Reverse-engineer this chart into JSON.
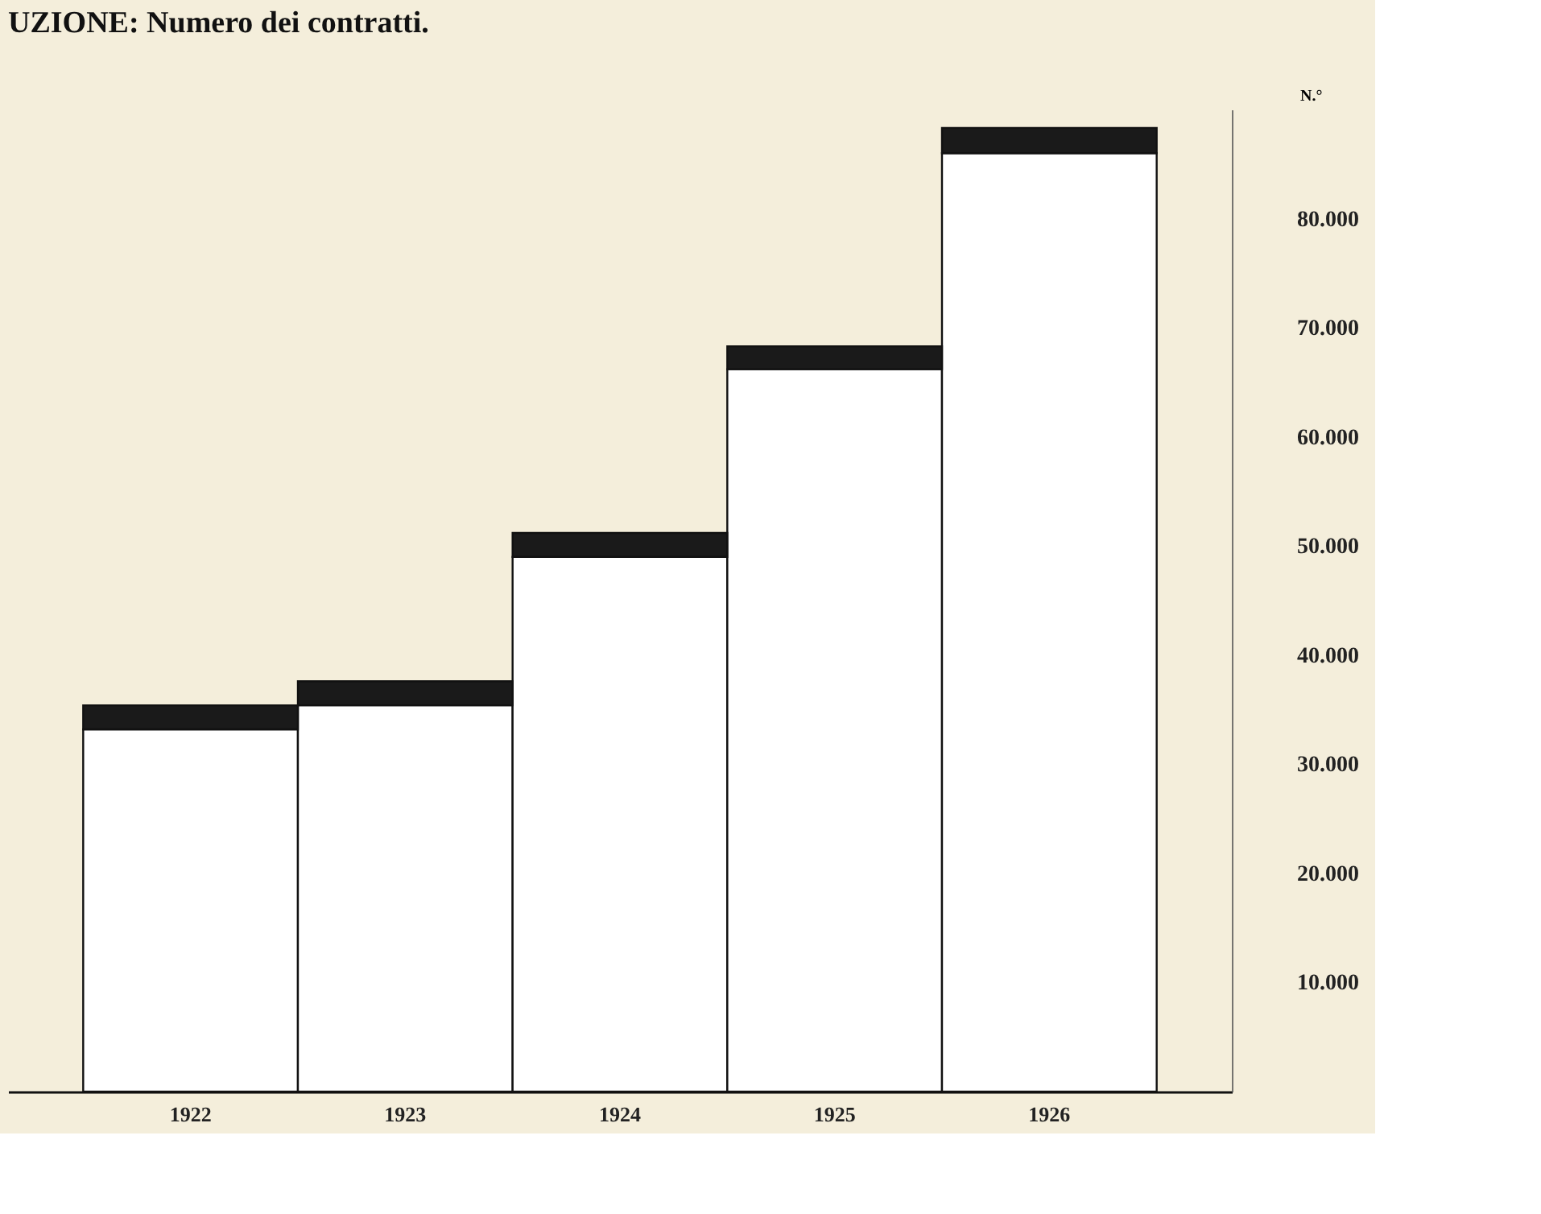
{
  "chart_data": {
    "type": "bar",
    "title": "UZIONE: Numero dei contratti.",
    "ylabel": "N.°",
    "categories": [
      "1922",
      "1923",
      "1924",
      "1925",
      "1926"
    ],
    "stacked": true,
    "series": [
      {
        "color": "#ffffff",
        "values": [
          33200,
          35400,
          49000,
          66200,
          86000
        ]
      },
      {
        "color": "#1a1a1a",
        "values": [
          2200,
          2200,
          2200,
          2100,
          2300
        ]
      }
    ],
    "ylim": [
      0,
      90000
    ],
    "yticks": [
      {
        "value": 10000,
        "label": "10.000"
      },
      {
        "value": 20000,
        "label": "20.000"
      },
      {
        "value": 30000,
        "label": "30.000"
      },
      {
        "value": 40000,
        "label": "40.000"
      },
      {
        "value": 50000,
        "label": "50.000"
      },
      {
        "value": 60000,
        "label": "60.000"
      },
      {
        "value": 70000,
        "label": "70.000"
      },
      {
        "value": 80000,
        "label": "80.000"
      }
    ],
    "grid": false,
    "legend": false
  }
}
